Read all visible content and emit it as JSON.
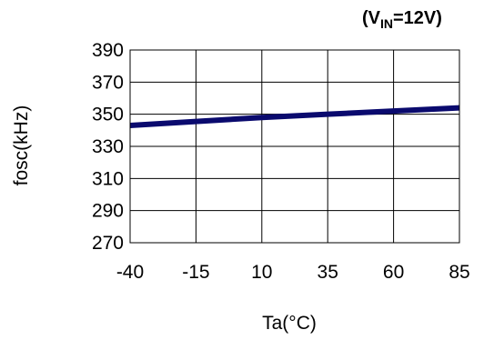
{
  "chart_data": {
    "type": "line",
    "annotation": {
      "prefix": "(V",
      "subscript": "IN",
      "suffix": "=12V)"
    },
    "xlabel": "Ta(°C)",
    "ylabel": "fosc(kHz)",
    "x_ticks": [
      -40,
      -15,
      10,
      35,
      60,
      85
    ],
    "x_tick_labels": [
      "-40",
      "-15",
      "10",
      "35",
      "60",
      "85"
    ],
    "y_ticks": [
      270,
      290,
      310,
      330,
      350,
      370,
      390
    ],
    "y_tick_labels": [
      "270",
      "290",
      "310",
      "330",
      "350",
      "370",
      "390"
    ],
    "xlim": [
      -40,
      85
    ],
    "ylim": [
      270,
      390
    ],
    "grid": true,
    "series": [
      {
        "x": [
          -40,
          -15,
          10,
          35,
          60,
          85
        ],
        "y": [
          343,
          345.5,
          348,
          350,
          352,
          354
        ],
        "color": "#0a0a6e"
      }
    ]
  }
}
